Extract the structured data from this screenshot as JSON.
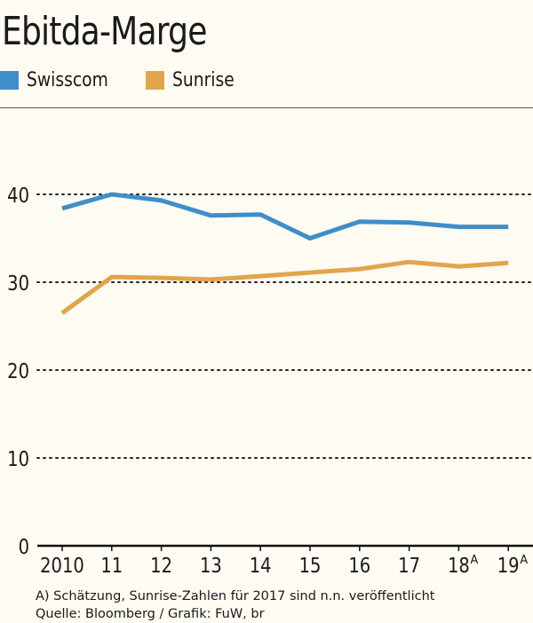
{
  "title": "Ebitda-Marge",
  "legend": [
    {
      "name": "Swisscom",
      "color": "#3f8ec9"
    },
    {
      "name": "Sunrise",
      "color": "#e1a54c"
    }
  ],
  "footnote": {
    "line1": "A) Schätzung, Sunrise-Zahlen für 2017 sind n.n. veröffentlicht",
    "line2": "Quelle: Bloomberg / Grafik: FuW, br"
  },
  "chart_data": {
    "type": "line",
    "title": "Ebitda-Marge",
    "categories": [
      "2010",
      "11",
      "12",
      "13",
      "14",
      "15",
      "16",
      "17",
      "18",
      "19"
    ],
    "category_superscripts": [
      "",
      "",
      "",
      "",
      "",
      "",
      "",
      "",
      "A",
      "A"
    ],
    "ylim": [
      0,
      40
    ],
    "yticks": [
      0,
      10,
      20,
      30,
      40
    ],
    "grid": true,
    "legend_position": "top-left",
    "series": [
      {
        "name": "Swisscom",
        "color": "#3f8ec9",
        "values": [
          38.4,
          40.0,
          39.3,
          37.6,
          37.7,
          35.0,
          36.9,
          36.8,
          36.3,
          36.3
        ]
      },
      {
        "name": "Sunrise",
        "color": "#e1a54c",
        "values": [
          26.5,
          30.6,
          30.5,
          30.3,
          30.7,
          31.1,
          31.5,
          32.3,
          31.8,
          32.2
        ]
      }
    ]
  }
}
